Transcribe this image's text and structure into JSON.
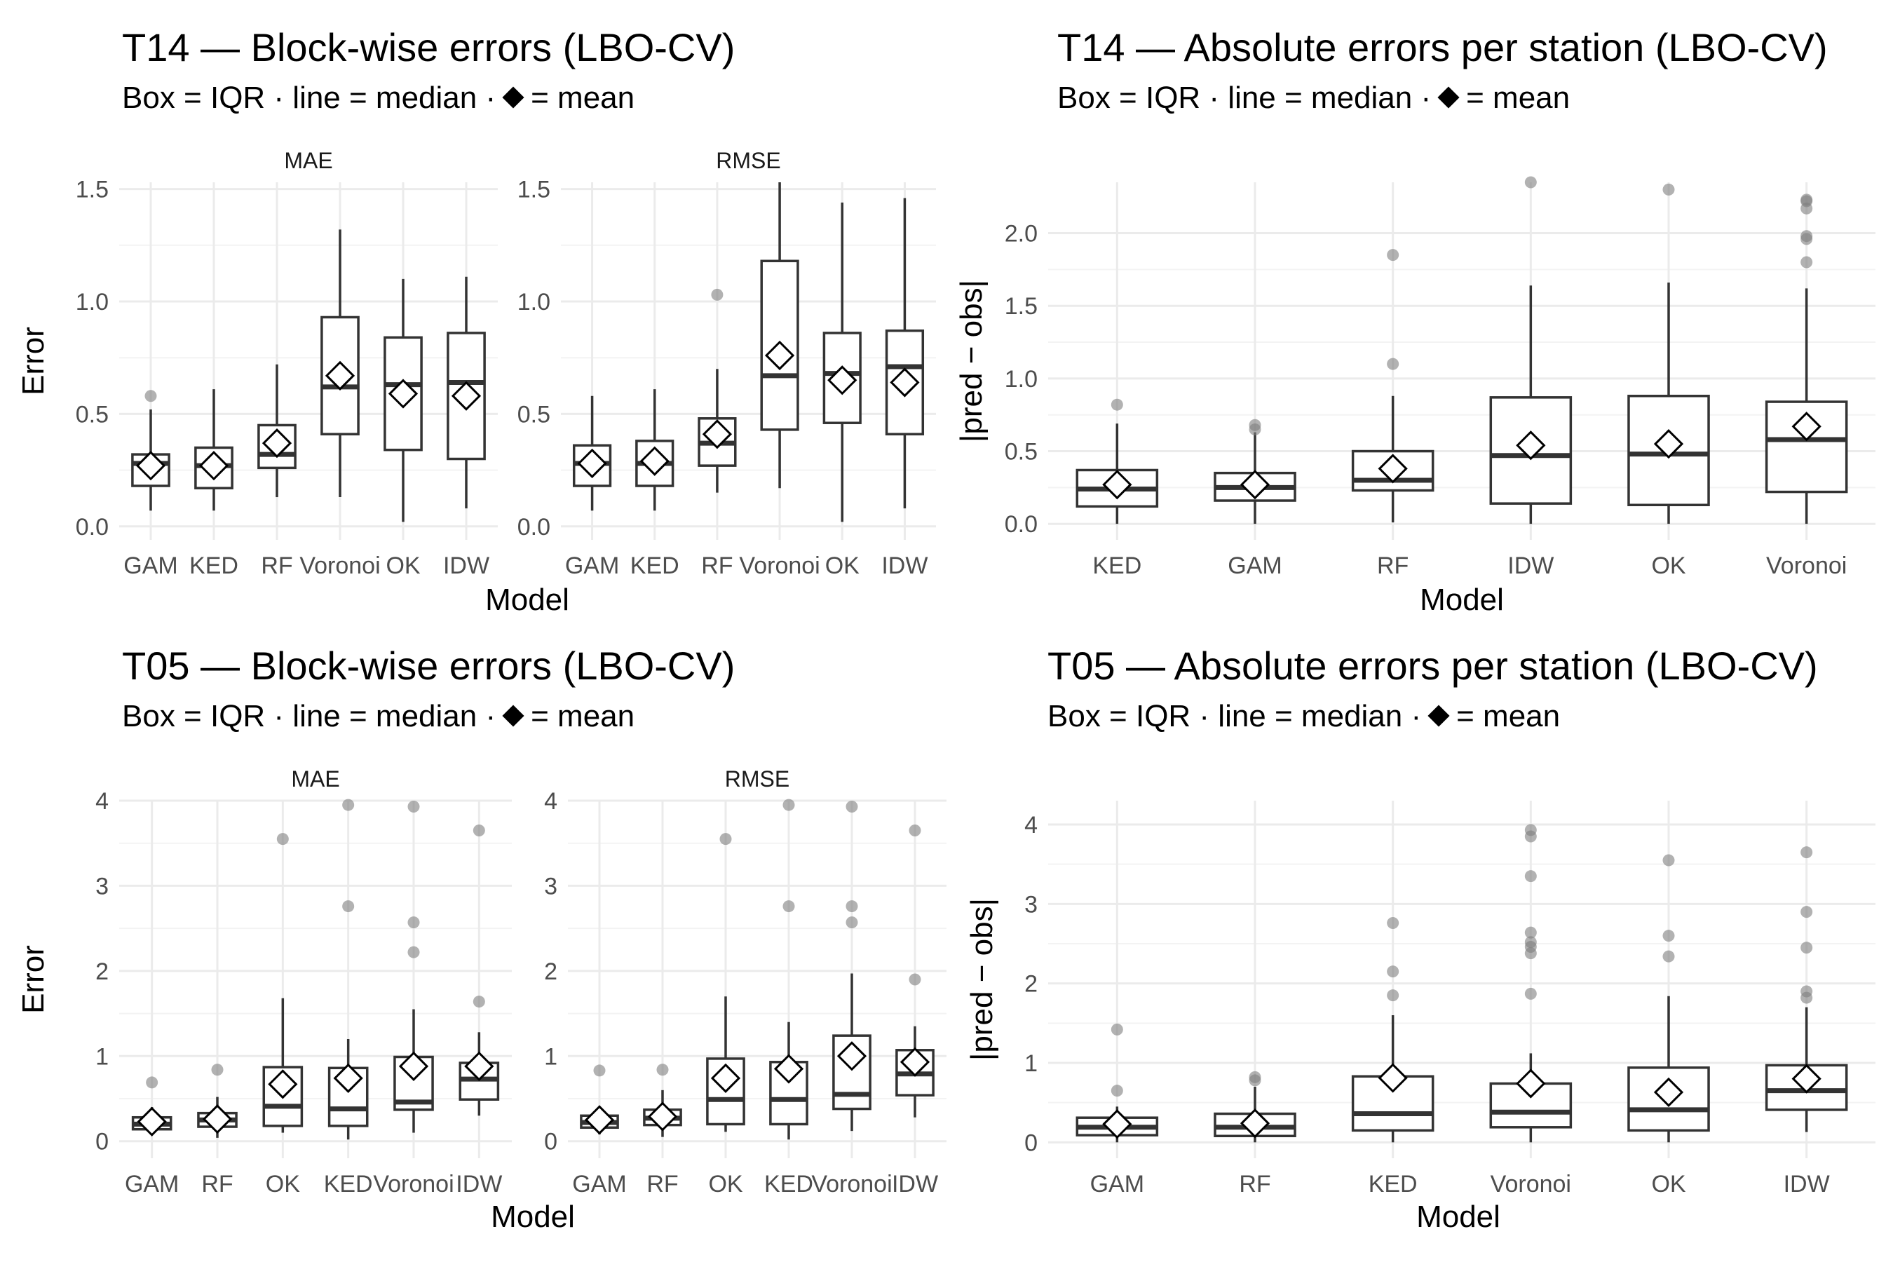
{
  "subtitle_parts": {
    "a": "Box = IQR · line = median ·",
    "b": "= mean"
  },
  "colors": {
    "grid": "#ebebeb",
    "box": "#333333",
    "outlier": "#7f7f7f",
    "text": "#4d4d4d",
    "mean_fill": "#ffffff"
  },
  "chart_data": [
    {
      "id": "t14-block",
      "type": "boxplot",
      "title": "T14 — Block-wise errors (LBO-CV)",
      "xlabel": "Model",
      "ylabel": "Error",
      "legend": "none",
      "grid": true,
      "ylim": [
        -0.06,
        1.53
      ],
      "yticks": [
        0.0,
        0.5,
        1.0,
        1.5
      ],
      "ytick_labels": [
        "0.0",
        "0.5",
        "1.0",
        "1.5"
      ],
      "facets": [
        {
          "label": "MAE",
          "categories": [
            "GAM",
            "KED",
            "RF",
            "Voronoi",
            "OK",
            "IDW"
          ],
          "boxes": [
            {
              "min": 0.07,
              "q1": 0.18,
              "median": 0.28,
              "q3": 0.32,
              "max": 0.52,
              "mean": 0.27,
              "outliers": [
                0.58
              ]
            },
            {
              "min": 0.07,
              "q1": 0.17,
              "median": 0.27,
              "q3": 0.35,
              "max": 0.61,
              "mean": 0.27,
              "outliers": []
            },
            {
              "min": 0.13,
              "q1": 0.26,
              "median": 0.32,
              "q3": 0.45,
              "max": 0.72,
              "mean": 0.37,
              "outliers": []
            },
            {
              "min": 0.13,
              "q1": 0.41,
              "median": 0.62,
              "q3": 0.93,
              "max": 1.32,
              "mean": 0.67,
              "outliers": []
            },
            {
              "min": 0.02,
              "q1": 0.34,
              "median": 0.63,
              "q3": 0.84,
              "max": 1.1,
              "mean": 0.59,
              "outliers": []
            },
            {
              "min": 0.08,
              "q1": 0.3,
              "median": 0.64,
              "q3": 0.86,
              "max": 1.11,
              "mean": 0.58,
              "outliers": []
            }
          ]
        },
        {
          "label": "RMSE",
          "categories": [
            "GAM",
            "KED",
            "RF",
            "Voronoi",
            "OK",
            "IDW"
          ],
          "boxes": [
            {
              "min": 0.07,
              "q1": 0.18,
              "median": 0.28,
              "q3": 0.36,
              "max": 0.58,
              "mean": 0.28,
              "outliers": []
            },
            {
              "min": 0.07,
              "q1": 0.18,
              "median": 0.28,
              "q3": 0.38,
              "max": 0.61,
              "mean": 0.29,
              "outliers": []
            },
            {
              "min": 0.15,
              "q1": 0.27,
              "median": 0.37,
              "q3": 0.48,
              "max": 0.7,
              "mean": 0.41,
              "outliers": [
                1.03
              ]
            },
            {
              "min": 0.17,
              "q1": 0.43,
              "median": 0.67,
              "q3": 1.18,
              "max": 1.53,
              "mean": 0.76,
              "outliers": []
            },
            {
              "min": 0.02,
              "q1": 0.46,
              "median": 0.68,
              "q3": 0.86,
              "max": 1.44,
              "mean": 0.65,
              "outliers": []
            },
            {
              "min": 0.08,
              "q1": 0.41,
              "median": 0.71,
              "q3": 0.87,
              "max": 1.46,
              "mean": 0.64,
              "outliers": []
            }
          ]
        }
      ]
    },
    {
      "id": "t14-abs",
      "type": "boxplot",
      "title": "T14 — Absolute errors per station (LBO-CV)",
      "xlabel": "Model",
      "ylabel": "|pred − obs|",
      "legend": "none",
      "grid": true,
      "ylim": [
        -0.11,
        2.35
      ],
      "yticks": [
        0.0,
        0.5,
        1.0,
        1.5,
        2.0
      ],
      "ytick_labels": [
        "0.0",
        "0.5",
        "1.0",
        "1.5",
        "2.0"
      ],
      "facets": [
        {
          "label": "",
          "categories": [
            "KED",
            "GAM",
            "RF",
            "IDW",
            "OK",
            "Voronoi"
          ],
          "boxes": [
            {
              "min": 0.0,
              "q1": 0.12,
              "median": 0.24,
              "q3": 0.37,
              "max": 0.69,
              "mean": 0.27,
              "outliers": [
                0.82
              ]
            },
            {
              "min": 0.0,
              "q1": 0.16,
              "median": 0.25,
              "q3": 0.35,
              "max": 0.63,
              "mean": 0.27,
              "outliers": [
                0.65,
                0.68
              ]
            },
            {
              "min": 0.01,
              "q1": 0.23,
              "median": 0.3,
              "q3": 0.5,
              "max": 0.88,
              "mean": 0.38,
              "outliers": [
                1.1,
                1.85
              ]
            },
            {
              "min": 0.0,
              "q1": 0.14,
              "median": 0.47,
              "q3": 0.87,
              "max": 1.64,
              "mean": 0.54,
              "outliers": [
                2.35
              ]
            },
            {
              "min": 0.0,
              "q1": 0.13,
              "median": 0.48,
              "q3": 0.88,
              "max": 1.66,
              "mean": 0.55,
              "outliers": [
                2.3
              ]
            },
            {
              "min": 0.0,
              "q1": 0.22,
              "median": 0.58,
              "q3": 0.84,
              "max": 1.62,
              "mean": 0.67,
              "outliers": [
                1.8,
                1.96,
                1.98,
                2.17,
                2.22,
                2.23
              ]
            }
          ]
        }
      ]
    },
    {
      "id": "t05-block",
      "type": "boxplot",
      "title": "T05 — Block-wise errors (LBO-CV)",
      "xlabel": "Model",
      "ylabel": "Error",
      "legend": "none",
      "grid": true,
      "ylim": [
        -0.2,
        4.0
      ],
      "yticks": [
        0,
        1,
        2,
        3,
        4
      ],
      "ytick_labels": [
        "0",
        "1",
        "2",
        "3",
        "4"
      ],
      "facets": [
        {
          "label": "MAE",
          "categories": [
            "GAM",
            "RF",
            "OK",
            "KED",
            "Voronoi",
            "IDW"
          ],
          "boxes": [
            {
              "min": 0.07,
              "q1": 0.14,
              "median": 0.2,
              "q3": 0.28,
              "max": 0.4,
              "mean": 0.23,
              "outliers": [
                0.69
              ]
            },
            {
              "min": 0.04,
              "q1": 0.17,
              "median": 0.25,
              "q3": 0.33,
              "max": 0.52,
              "mean": 0.26,
              "outliers": [
                0.84
              ]
            },
            {
              "min": 0.1,
              "q1": 0.18,
              "median": 0.41,
              "q3": 0.87,
              "max": 1.68,
              "mean": 0.67,
              "outliers": [
                3.55
              ]
            },
            {
              "min": 0.02,
              "q1": 0.18,
              "median": 0.38,
              "q3": 0.86,
              "max": 1.2,
              "mean": 0.74,
              "outliers": [
                2.76,
                3.95
              ]
            },
            {
              "min": 0.1,
              "q1": 0.37,
              "median": 0.46,
              "q3": 0.99,
              "max": 1.55,
              "mean": 0.88,
              "outliers": [
                2.22,
                2.57,
                3.93
              ]
            },
            {
              "min": 0.3,
              "q1": 0.49,
              "median": 0.73,
              "q3": 0.92,
              "max": 1.28,
              "mean": 0.88,
              "outliers": [
                1.64,
                3.65
              ]
            }
          ]
        },
        {
          "label": "RMSE",
          "categories": [
            "GAM",
            "RF",
            "OK",
            "KED",
            "Voronoi",
            "IDW"
          ],
          "boxes": [
            {
              "min": 0.08,
              "q1": 0.16,
              "median": 0.22,
              "q3": 0.3,
              "max": 0.4,
              "mean": 0.25,
              "outliers": [
                0.83
              ]
            },
            {
              "min": 0.05,
              "q1": 0.19,
              "median": 0.27,
              "q3": 0.37,
              "max": 0.6,
              "mean": 0.29,
              "outliers": [
                0.84
              ]
            },
            {
              "min": 0.11,
              "q1": 0.2,
              "median": 0.49,
              "q3": 0.97,
              "max": 1.7,
              "mean": 0.74,
              "outliers": [
                3.55
              ]
            },
            {
              "min": 0.02,
              "q1": 0.2,
              "median": 0.49,
              "q3": 0.93,
              "max": 1.4,
              "mean": 0.85,
              "outliers": [
                2.76,
                3.95
              ]
            },
            {
              "min": 0.12,
              "q1": 0.38,
              "median": 0.55,
              "q3": 1.24,
              "max": 1.97,
              "mean": 1.0,
              "outliers": [
                2.57,
                2.76,
                3.93
              ]
            },
            {
              "min": 0.28,
              "q1": 0.54,
              "median": 0.79,
              "q3": 1.07,
              "max": 1.35,
              "mean": 0.93,
              "outliers": [
                1.9,
                3.65
              ]
            }
          ]
        }
      ]
    },
    {
      "id": "t05-abs",
      "type": "boxplot",
      "title": "T05 — Absolute errors per station (LBO-CV)",
      "xlabel": "Model",
      "ylabel": "|pred − obs|",
      "legend": "none",
      "grid": true,
      "ylim": [
        -0.2,
        4.3
      ],
      "yticks": [
        0,
        1,
        2,
        3,
        4
      ],
      "ytick_labels": [
        "0",
        "1",
        "2",
        "3",
        "4"
      ],
      "facets": [
        {
          "label": "",
          "categories": [
            "GAM",
            "RF",
            "KED",
            "Voronoi",
            "OK",
            "IDW"
          ],
          "boxes": [
            {
              "min": 0.0,
              "q1": 0.09,
              "median": 0.19,
              "q3": 0.31,
              "max": 0.45,
              "mean": 0.23,
              "outliers": [
                0.65,
                1.42
              ]
            },
            {
              "min": 0.0,
              "q1": 0.08,
              "median": 0.19,
              "q3": 0.36,
              "max": 0.7,
              "mean": 0.24,
              "outliers": [
                0.78,
                0.82
              ]
            },
            {
              "min": 0.0,
              "q1": 0.15,
              "median": 0.36,
              "q3": 0.83,
              "max": 1.6,
              "mean": 0.81,
              "outliers": [
                1.85,
                2.15,
                2.76
              ]
            },
            {
              "min": 0.0,
              "q1": 0.19,
              "median": 0.38,
              "q3": 0.74,
              "max": 1.12,
              "mean": 0.74,
              "outliers": [
                1.87,
                2.38,
                2.46,
                2.52,
                2.64,
                3.35,
                3.85,
                3.93
              ]
            },
            {
              "min": 0.0,
              "q1": 0.15,
              "median": 0.41,
              "q3": 0.94,
              "max": 1.84,
              "mean": 0.63,
              "outliers": [
                2.34,
                2.6,
                3.55
              ]
            },
            {
              "min": 0.13,
              "q1": 0.41,
              "median": 0.65,
              "q3": 0.97,
              "max": 1.7,
              "mean": 0.8,
              "outliers": [
                1.82,
                1.9,
                2.45,
                2.9,
                3.65
              ]
            }
          ]
        }
      ]
    }
  ]
}
